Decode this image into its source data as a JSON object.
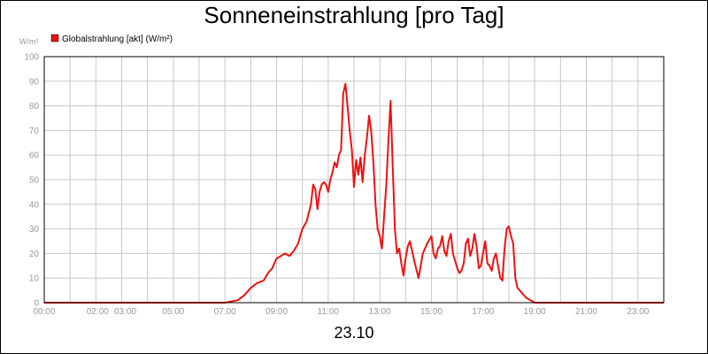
{
  "chart_data": {
    "type": "line",
    "title": "Sonneneinstrahlung [pro Tag]",
    "xlabel": "23.10",
    "ylabel": "W/m²",
    "ylim": [
      0,
      100
    ],
    "xlim": [
      "00:00",
      "24:00"
    ],
    "grid": true,
    "legend_position": "top-left",
    "y_ticks": [
      "0",
      "10",
      "20",
      "30",
      "40",
      "50",
      "60",
      "70",
      "80",
      "90",
      "100"
    ],
    "x_ticks": [
      {
        "label": "00:00",
        "h": 0
      },
      {
        "label": "02:00",
        "h": 2
      },
      {
        "label": "03:00",
        "h": 3
      },
      {
        "label": "05:00",
        "h": 5
      },
      {
        "label": "07:00",
        "h": 7
      },
      {
        "label": "09:00",
        "h": 9
      },
      {
        "label": "11:00",
        "h": 11
      },
      {
        "label": "13:00",
        "h": 13
      },
      {
        "label": "15:00",
        "h": 15
      },
      {
        "label": "17:00",
        "h": 17
      },
      {
        "label": "19:00",
        "h": 19
      },
      {
        "label": "21:00",
        "h": 21
      },
      {
        "label": "23:00",
        "h": 23
      }
    ],
    "series": [
      {
        "name": "Globalstrahlung [akt] (W/m²)",
        "color": "#ee1111",
        "x": [
          "00:00",
          "07:00",
          "07:30",
          "07:45",
          "08:00",
          "08:15",
          "08:30",
          "08:40",
          "08:50",
          "09:00",
          "09:10",
          "09:20",
          "09:30",
          "09:40",
          "09:50",
          "10:00",
          "10:10",
          "10:20",
          "10:25",
          "10:30",
          "10:35",
          "10:40",
          "10:45",
          "10:50",
          "10:55",
          "11:00",
          "11:05",
          "11:10",
          "11:15",
          "11:20",
          "11:25",
          "11:30",
          "11:35",
          "11:40",
          "11:45",
          "11:50",
          "11:55",
          "12:00",
          "12:05",
          "12:10",
          "12:15",
          "12:20",
          "12:25",
          "12:30",
          "12:35",
          "12:40",
          "12:45",
          "12:50",
          "12:55",
          "13:00",
          "13:05",
          "13:10",
          "13:15",
          "13:20",
          "13:25",
          "13:30",
          "13:35",
          "13:40",
          "13:45",
          "13:50",
          "13:55",
          "14:00",
          "14:05",
          "14:10",
          "14:20",
          "14:30",
          "14:40",
          "14:50",
          "15:00",
          "15:05",
          "15:10",
          "15:15",
          "15:20",
          "15:25",
          "15:30",
          "15:35",
          "15:40",
          "15:45",
          "15:50",
          "16:00",
          "16:05",
          "16:10",
          "16:15",
          "16:20",
          "16:25",
          "16:30",
          "16:35",
          "16:40",
          "16:45",
          "16:50",
          "16:55",
          "17:00",
          "17:05",
          "17:10",
          "17:15",
          "17:20",
          "17:25",
          "17:30",
          "17:35",
          "17:40",
          "17:45",
          "17:50",
          "17:55",
          "18:00",
          "18:05",
          "18:10",
          "18:15",
          "18:20",
          "18:25",
          "18:30",
          "18:40",
          "18:50",
          "19:00",
          "24:00"
        ],
        "values": [
          0,
          0,
          1,
          3,
          6,
          8,
          9,
          12,
          14,
          18,
          19,
          20,
          19,
          21,
          24,
          30,
          33,
          40,
          48,
          46,
          38,
          45,
          48,
          49,
          48,
          45,
          50,
          53,
          57,
          55,
          60,
          62,
          85,
          89,
          80,
          70,
          62,
          47,
          58,
          52,
          59,
          49,
          60,
          67,
          76,
          70,
          57,
          40,
          30,
          27,
          22,
          35,
          48,
          66,
          82,
          55,
          30,
          20,
          22,
          16,
          11,
          18,
          23,
          25,
          17,
          10,
          20,
          24,
          27,
          20,
          18,
          22,
          23,
          27,
          21,
          19,
          25,
          28,
          20,
          14,
          12,
          13,
          16,
          24,
          26,
          19,
          22,
          28,
          23,
          14,
          15,
          20,
          25,
          16,
          15,
          13,
          18,
          20,
          15,
          10,
          9,
          22,
          30,
          31,
          27,
          24,
          10,
          6,
          5,
          4,
          2,
          1,
          0,
          0
        ]
      }
    ]
  }
}
